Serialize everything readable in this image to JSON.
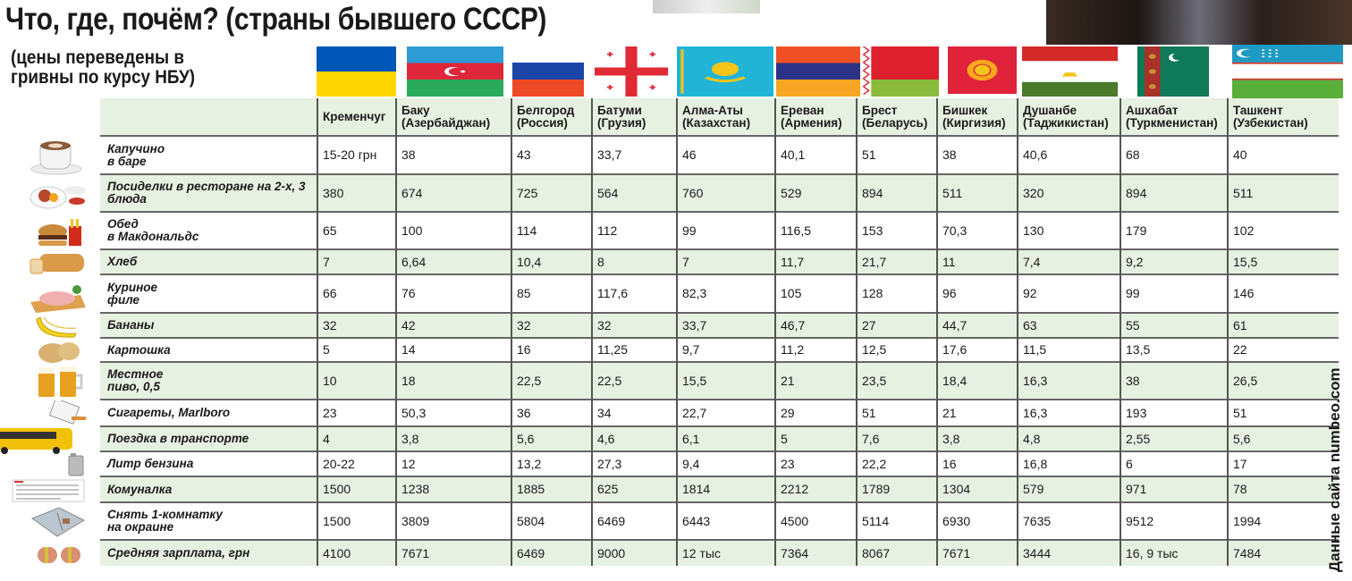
{
  "title": "Что, где, почём? (страны бывшего СССР)",
  "subtitle_line1": "(цены переведены в",
  "subtitle_line2": "гривны по курсу НБУ)",
  "source": "Данные сайта numbeo.com",
  "colors": {
    "row_alt": "#e6f1e1",
    "header_bg": "#e6f1e1"
  },
  "columns": [
    {
      "city": "Кременчуг",
      "country": "",
      "flag": "ukraine"
    },
    {
      "city": "Баку",
      "country": "(Азербайджан)",
      "flag": "azerbaijan"
    },
    {
      "city": "Белгород",
      "country": "(Россия)",
      "flag": "russia"
    },
    {
      "city": "Батуми",
      "country": "(Грузия)",
      "flag": "georgia"
    },
    {
      "city": "Алма-Аты",
      "country": "(Казахстан)",
      "flag": "kazakhstan"
    },
    {
      "city": "Ереван",
      "country": "(Армения)",
      "flag": "armenia"
    },
    {
      "city": "Брест",
      "country": "(Беларусь)",
      "flag": "belarus"
    },
    {
      "city": "Бишкек",
      "country": "(Киргизия)",
      "flag": "kyrgyzstan"
    },
    {
      "city": "Душанбе",
      "country": "(Таджикистан)",
      "flag": "tajikistan"
    },
    {
      "city": "Ашхабат",
      "country": "(Туркменистан)",
      "flag": "turkmenistan"
    },
    {
      "city": "Ташкент",
      "country": "(Узбекистан)",
      "flag": "uzbekistan"
    }
  ],
  "rows": [
    {
      "label1": "Капучино",
      "label2": "в баре",
      "icon": "coffee-cup-icon",
      "values": [
        "15-20 грн",
        "38",
        "43",
        "33,7",
        "46",
        "40,1",
        "51",
        "38",
        "40,6",
        "68",
        "40"
      ]
    },
    {
      "label1": "Посиделки в ресторане на 2-х, 3",
      "label2": "блюда",
      "icon": "restaurant-dish-icon",
      "values": [
        "380",
        "674",
        "725",
        "564",
        "760",
        "529",
        "894",
        "511",
        "320",
        "894",
        "511"
      ]
    },
    {
      "label1": "Обед",
      "label2": "в Макдональдс",
      "icon": "burger-icon",
      "values": [
        "65",
        "100",
        "114",
        "112",
        "99",
        "116,5",
        "153",
        "70,3",
        "130",
        "179",
        "102"
      ]
    },
    {
      "label1": "Хлеб",
      "label2": "",
      "icon": "bread-icon",
      "values": [
        "7",
        "6,64",
        "10,4",
        "8",
        "7",
        "11,7",
        "21,7",
        "11",
        "7,4",
        "9,2",
        "15,5"
      ]
    },
    {
      "label1": "Куриное",
      "label2": "филе",
      "icon": "chicken-fillet-icon",
      "values": [
        "66",
        "76",
        "85",
        "117,6",
        "82,3",
        "105",
        "128",
        "96",
        "92",
        "99",
        "146"
      ]
    },
    {
      "label1": "Бананы",
      "label2": "",
      "icon": "banana-icon",
      "values": [
        "32",
        "42",
        "32",
        "32",
        "33,7",
        "46,7",
        "27",
        "44,7",
        "63",
        "55",
        "61"
      ]
    },
    {
      "label1": "Картошка",
      "label2": "",
      "icon": "potato-icon",
      "values": [
        "5",
        "14",
        "16",
        "11,25",
        "9,7",
        "11,2",
        "12,5",
        "17,6",
        "11,5",
        "13,5",
        "22"
      ]
    },
    {
      "label1": "Местное",
      "label2": "пиво, 0,5",
      "icon": "beer-icon",
      "values": [
        "10",
        "18",
        "22,5",
        "22,5",
        "15,5",
        "21",
        "23,5",
        "18,4",
        "16,3",
        "38",
        "26,5"
      ]
    },
    {
      "label1": "Сигареты, Marlboro",
      "label2": "",
      "icon": "cigarettes-icon",
      "values": [
        "23",
        "50,3",
        "36",
        "34",
        "22,7",
        "29",
        "51",
        "21",
        "16,3",
        "193",
        "51"
      ]
    },
    {
      "label1": "Поездка в транспорте",
      "label2": "",
      "icon": "bus-icon",
      "values": [
        "4",
        "3,8",
        "5,6",
        "4,6",
        "6,1",
        "5",
        "7,6",
        "3,8",
        "4,8",
        "2,55",
        "5,6"
      ]
    },
    {
      "label1": "Литр бензина",
      "label2": "",
      "icon": "fuel-canister-icon",
      "values": [
        "20-22",
        "12",
        "13,2",
        "27,3",
        "9,4",
        "23",
        "22,2",
        "16",
        "16,8",
        "6",
        "17"
      ]
    },
    {
      "label1": "Комуналка",
      "label2": "",
      "icon": "utility-bill-icon",
      "values": [
        "1500",
        "1238",
        "1885",
        "625",
        "1814",
        "2212",
        "1789",
        "1304",
        "579",
        "971",
        "78"
      ]
    },
    {
      "label1": "Снять 1-комнатку",
      "label2": "на окраине",
      "icon": "apartment-icon",
      "values": [
        "1500",
        "3809",
        "5804",
        "6469",
        "6443",
        "4500",
        "5114",
        "6930",
        "7635",
        "9512",
        "1994"
      ]
    },
    {
      "label1": "Средняя зарплата, грн",
      "label2": "",
      "icon": "money-rolls-icon",
      "values": [
        "4100",
        "7671",
        "6469",
        "9000",
        "12 тыс",
        "7364",
        "8067",
        "7671",
        "3444",
        "16, 9 тыс",
        "7484"
      ]
    }
  ]
}
